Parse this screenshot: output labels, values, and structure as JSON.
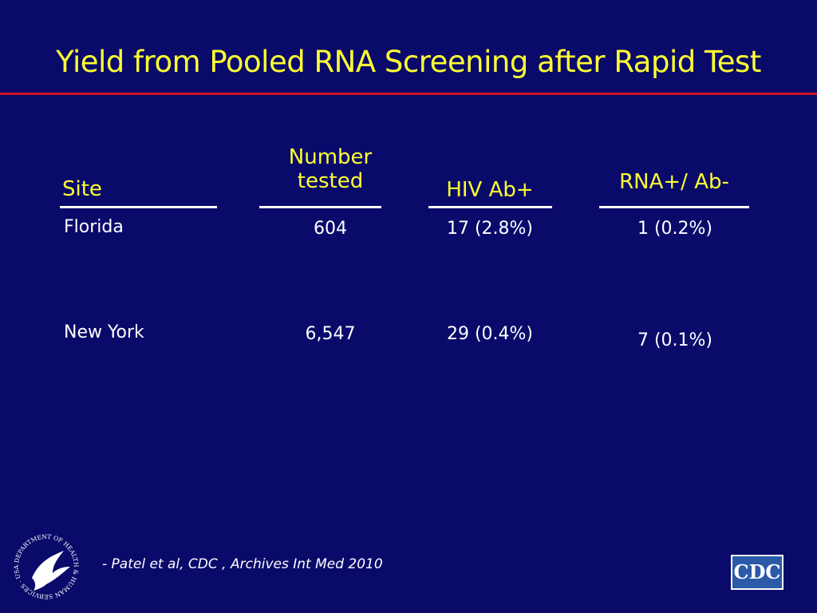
{
  "header": {
    "title": "Yield from Pooled RNA Screening after Rapid Test"
  },
  "table": {
    "headers": [
      "Site",
      "Number\ntested",
      "HIV Ab+",
      "RNA+/ Ab-"
    ],
    "rows": [
      [
        "Florida",
        "604",
        "17 (2.8%)",
        "1 (0.2%)"
      ],
      [
        "New York",
        "6,547",
        "29 (0.4%)",
        "7 (0.1%)"
      ]
    ]
  },
  "footer": {
    "citation": "- Patel et al, CDC , Archives Int Med 2010"
  },
  "logos": {
    "hhs": "DEPARTMENT OF HEALTH & HUMAN SERVICES · USA",
    "cdc": "CDC"
  }
}
